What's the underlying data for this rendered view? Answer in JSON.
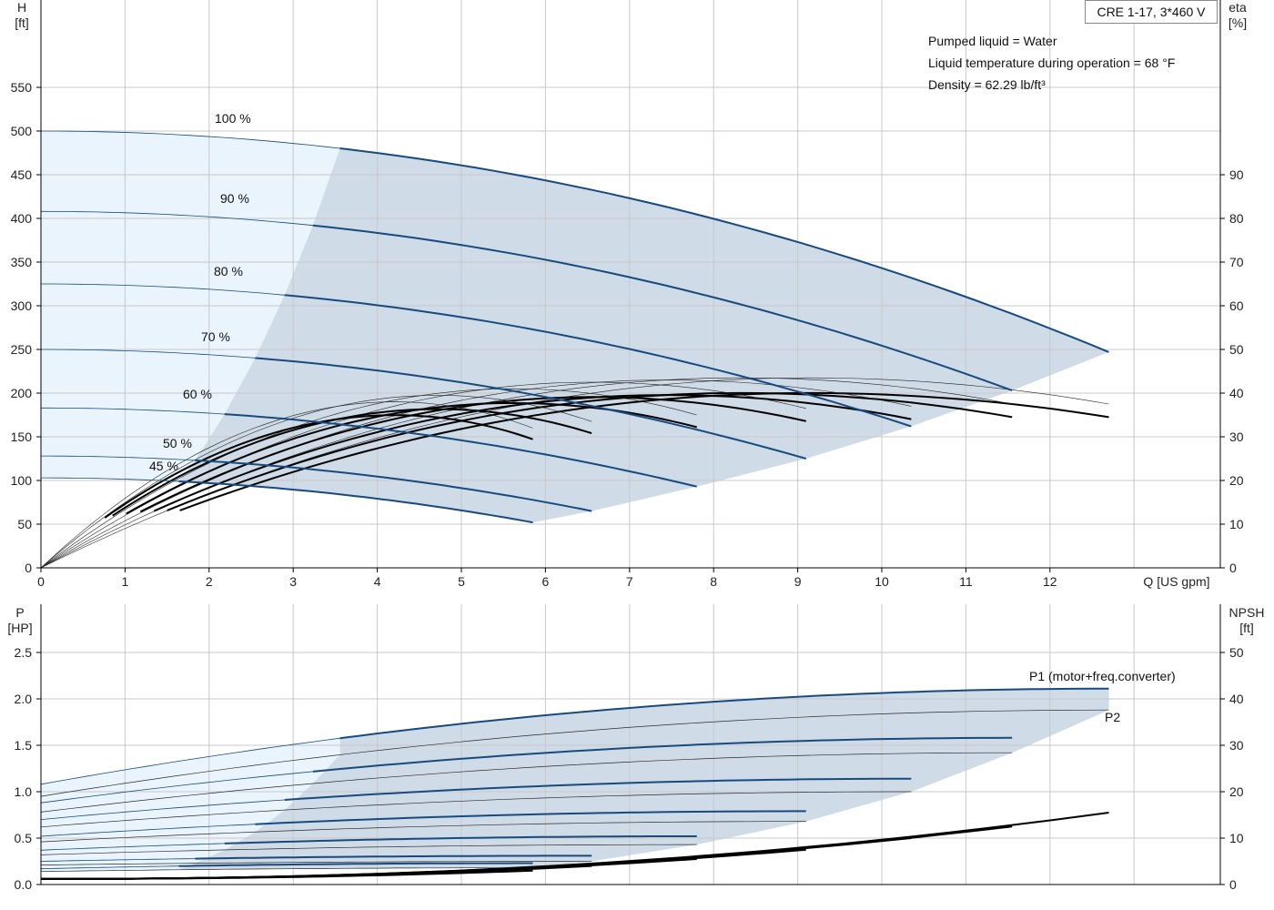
{
  "info": {
    "model": "CRE 1-17, 3*460 V",
    "lines": [
      "Pumped liquid = Water",
      "Liquid temperature during operation = 68 °F",
      "Density = 62.29 lb/ft³"
    ]
  },
  "colors": {
    "head_curve": "#174a7e",
    "eta_curve": "#000000",
    "operating_area": "#cfdbe7",
    "light_area": "#eaf4fc",
    "grid": "#c8c8c8",
    "p1_label": "#174a7e"
  },
  "chart_data": [
    {
      "type": "line",
      "xlabel": "Q [US gpm]",
      "ylabel_left": [
        "H",
        "[ft]"
      ],
      "ylabel_right": [
        "eta",
        "[%]"
      ],
      "xlim": [
        0,
        13.5
      ],
      "ylim_left": [
        0,
        500
      ],
      "ylim_right": [
        0,
        100
      ],
      "xticks": [
        "0",
        "1",
        "2",
        "3",
        "4",
        "5",
        "6",
        "7",
        "8",
        "9",
        "10",
        "11",
        "12"
      ],
      "yticks_left": [
        "0",
        "50",
        "100",
        "150",
        "200",
        "250",
        "300",
        "350",
        "400",
        "450",
        "500",
        "550"
      ],
      "yticks_right": [
        "0",
        "10",
        "20",
        "30",
        "40",
        "50",
        "60",
        "70",
        "80",
        "90"
      ],
      "grid": true,
      "head_series": [
        {
          "name": "100 %",
          "h0": 500,
          "qmax": 12.7,
          "hend": 247
        },
        {
          "name": "90 %",
          "h0": 408,
          "qmax": 11.55,
          "hend": 203
        },
        {
          "name": "80 %",
          "h0": 325,
          "qmax": 10.35,
          "hend": 162
        },
        {
          "name": "70 %",
          "h0": 250,
          "qmax": 9.1,
          "hend": 125
        },
        {
          "name": "60 %",
          "h0": 183,
          "qmax": 7.8,
          "hend": 93
        },
        {
          "name": "50 %",
          "h0": 128,
          "qmax": 6.55,
          "hend": 65
        },
        {
          "name": "45 %",
          "h0": 103,
          "qmax": 5.85,
          "hend": 52
        }
      ],
      "eta_series": [
        {
          "qmax": 12.7,
          "peak": 43.5,
          "end": 37.5
        },
        {
          "qmax": 11.55,
          "peak": 43.5,
          "end": 37.5
        },
        {
          "qmax": 10.35,
          "peak": 43,
          "end": 37
        },
        {
          "qmax": 9.1,
          "peak": 42.5,
          "end": 36.5
        },
        {
          "qmax": 7.8,
          "peak": 41,
          "end": 35
        },
        {
          "qmax": 6.55,
          "peak": 39.5,
          "end": 33.5
        },
        {
          "qmax": 5.85,
          "peak": 38,
          "end": 32
        }
      ]
    },
    {
      "type": "line",
      "ylabel_left": [
        "P",
        "[HP]"
      ],
      "ylabel_right": [
        "NPSH",
        "[ft]"
      ],
      "xlim": [
        0,
        13.5
      ],
      "ylim_left": [
        0,
        2.5
      ],
      "ylim_right": [
        0,
        50
      ],
      "yticks_left": [
        "0.0",
        "0.5",
        "1.0",
        "1.5",
        "2.0",
        "2.5"
      ],
      "yticks_right": [
        "0",
        "10",
        "20",
        "30",
        "40",
        "50"
      ],
      "grid": true,
      "power_series": [
        {
          "qmax": 12.7,
          "p1_0": 1.08,
          "p1_end": 2.11,
          "p2_0": 0.95,
          "p2_end": 1.88
        },
        {
          "qmax": 11.55,
          "p1_0": 0.88,
          "p1_end": 1.58,
          "p2_0": 0.78,
          "p2_end": 1.42
        },
        {
          "qmax": 10.35,
          "p1_0": 0.7,
          "p1_end": 1.14,
          "p2_0": 0.62,
          "p2_end": 1.0
        },
        {
          "qmax": 9.1,
          "p1_0": 0.52,
          "p1_end": 0.79,
          "p2_0": 0.46,
          "p2_end": 0.68
        },
        {
          "qmax": 7.8,
          "p1_0": 0.37,
          "p1_end": 0.52,
          "p2_0": 0.32,
          "p2_end": 0.43
        },
        {
          "qmax": 6.55,
          "p1_0": 0.25,
          "p1_end": 0.31,
          "p2_0": 0.21,
          "p2_end": 0.25
        },
        {
          "qmax": 5.85,
          "p1_0": 0.17,
          "p1_end": 0.23,
          "p2_0": 0.14,
          "p2_end": 0.18
        }
      ],
      "npsh_series": [
        {
          "qmax": 12.7,
          "end": 15.5
        },
        {
          "qmax": 11.55,
          "end": 12.5
        },
        {
          "qmax": 10.35,
          "end": 10
        },
        {
          "qmax": 9.1,
          "end": 7.5
        },
        {
          "qmax": 7.8,
          "end": 5.5
        },
        {
          "qmax": 6.55,
          "end": 4
        },
        {
          "qmax": 5.85,
          "end": 3
        }
      ],
      "labels": {
        "p1": "P1 (motor+freq.converter)",
        "p2": "P2"
      }
    }
  ]
}
